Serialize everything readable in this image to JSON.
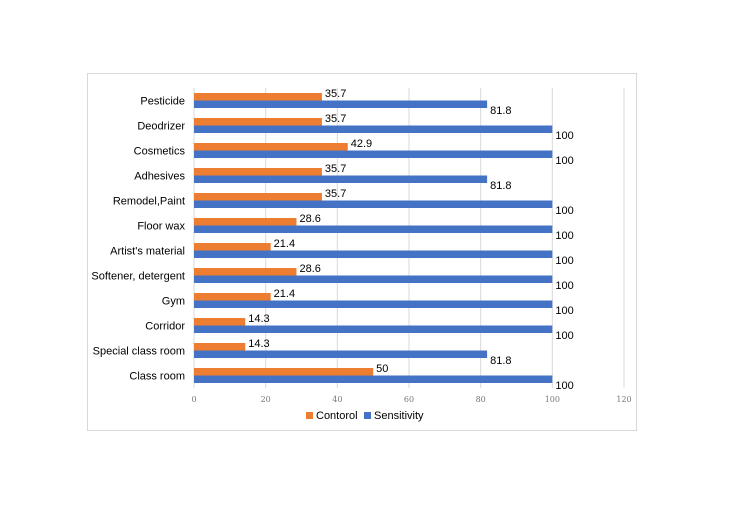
{
  "chart_data": {
    "type": "bar",
    "orientation": "horizontal",
    "categories": [
      "Pesticide",
      "Deodrizer",
      "Cosmetics",
      "Adhesives",
      "Remodel,Paint",
      "Floor wax",
      "Artist's material",
      "Softener, detergent",
      "Gym",
      "Corridor",
      "Special class room",
      "Class room"
    ],
    "series": [
      {
        "name": "Contorol",
        "color": "#ed7d31",
        "values": [
          35.7,
          35.7,
          42.9,
          35.7,
          35.7,
          28.6,
          21.4,
          28.6,
          21.4,
          14.3,
          14.3,
          50
        ]
      },
      {
        "name": "Sensitivity",
        "color": "#4472c4",
        "values": [
          81.8,
          100,
          100,
          81.8,
          100,
          100,
          100,
          100,
          100,
          100,
          81.8,
          100
        ]
      }
    ],
    "data_labels": [
      [
        "35.7",
        "35.7",
        "42.9",
        "35.7",
        "35.7",
        "28.6",
        "21.4",
        "28.6",
        "21.4",
        "14.3",
        "14.3",
        "50"
      ],
      [
        "81.8",
        "100",
        "100",
        "81.8",
        "100",
        "100",
        "100",
        "100",
        "100",
        "100",
        "81.8",
        "100"
      ]
    ],
    "x_ticks": [
      "0",
      "20",
      "40",
      "60",
      "80",
      "100",
      "120"
    ],
    "xlim": [
      0,
      120
    ],
    "grid": true,
    "legend_position": "bottom",
    "title": "",
    "xlabel": "",
    "ylabel": ""
  }
}
